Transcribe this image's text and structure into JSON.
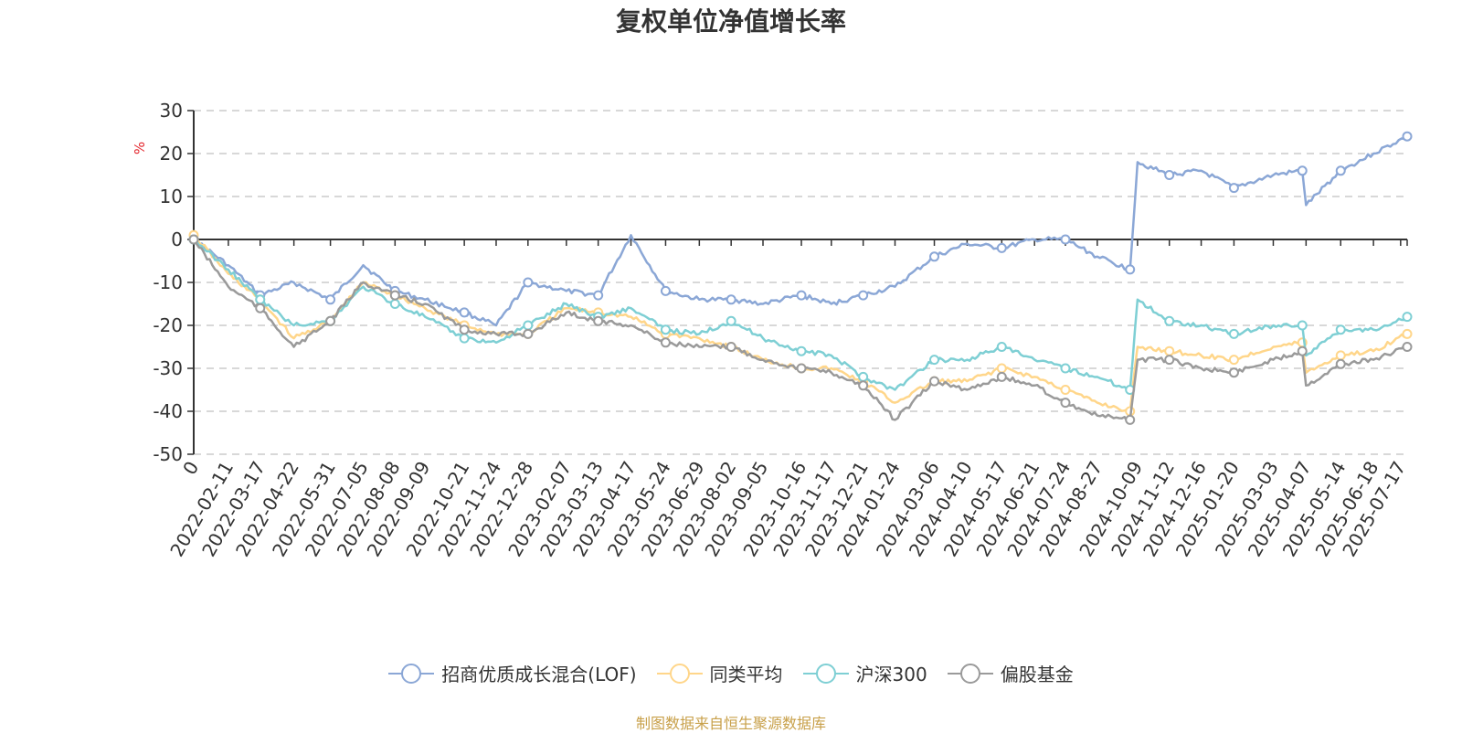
{
  "chart_data": {
    "type": "line",
    "title": "复权单位净值增长率",
    "ylabel": "%",
    "ylim": [
      -50,
      30
    ],
    "yticks": [
      30,
      20,
      10,
      0,
      -10,
      -20,
      -30,
      -40,
      -50
    ],
    "grid": true,
    "legend_position": "bottom",
    "x_start": "2022-01-05",
    "x_end": "2025-07-24",
    "x_first_tick_label": "0",
    "x_tick_labels": [
      "2022-02-11",
      "2022-03-17",
      "2022-04-22",
      "2022-05-31",
      "2022-07-05",
      "2022-08-08",
      "2022-09-09",
      "2022-10-21",
      "2022-11-24",
      "2022-12-28",
      "2023-02-07",
      "2023-03-13",
      "2023-04-17",
      "2023-05-24",
      "2023-06-29",
      "2023-08-02",
      "2023-09-05",
      "2023-10-16",
      "2023-11-17",
      "2023-12-21",
      "2024-01-24",
      "2024-03-06",
      "2024-04-10",
      "2024-05-17",
      "2024-06-21",
      "2024-07-24",
      "2024-08-27",
      "2024-10-09",
      "2024-11-12",
      "2024-12-16",
      "2025-01-20",
      "2025-03-03",
      "2025-04-07",
      "2025-05-14",
      "2025-06-18",
      "2025-07-17"
    ],
    "series": [
      {
        "name": "招商优质成长混合(LOF)",
        "color": "#8ba7d6",
        "points": [
          [
            "2022-01-05",
            0
          ],
          [
            "2022-02-11",
            -6
          ],
          [
            "2022-03-17",
            -13
          ],
          [
            "2022-04-22",
            -10
          ],
          [
            "2022-05-31",
            -14
          ],
          [
            "2022-07-05",
            -6
          ],
          [
            "2022-08-08",
            -12
          ],
          [
            "2022-09-09",
            -14
          ],
          [
            "2022-10-21",
            -17
          ],
          [
            "2022-11-24",
            -20
          ],
          [
            "2022-12-28",
            -10
          ],
          [
            "2023-02-07",
            -12
          ],
          [
            "2023-03-13",
            -13
          ],
          [
            "2023-04-17",
            1
          ],
          [
            "2023-05-24",
            -12
          ],
          [
            "2023-06-29",
            -14
          ],
          [
            "2023-08-02",
            -14
          ],
          [
            "2023-09-05",
            -15
          ],
          [
            "2023-10-16",
            -13
          ],
          [
            "2023-11-17",
            -15
          ],
          [
            "2023-12-21",
            -13
          ],
          [
            "2024-01-24",
            -11
          ],
          [
            "2024-03-06",
            -4
          ],
          [
            "2024-04-10",
            -1
          ],
          [
            "2024-05-17",
            -2
          ],
          [
            "2024-06-21",
            0
          ],
          [
            "2024-07-24",
            0
          ],
          [
            "2024-08-27",
            -4
          ],
          [
            "2024-10-01",
            -7
          ],
          [
            "2024-10-09",
            18
          ],
          [
            "2024-11-12",
            15
          ],
          [
            "2024-12-16",
            16
          ],
          [
            "2025-01-20",
            12
          ],
          [
            "2025-03-03",
            15
          ],
          [
            "2025-04-03",
            16
          ],
          [
            "2025-04-07",
            8
          ],
          [
            "2025-05-14",
            16
          ],
          [
            "2025-06-18",
            20
          ],
          [
            "2025-07-24",
            24
          ]
        ]
      },
      {
        "name": "同类平均",
        "color": "#ffd68a",
        "points": [
          [
            "2022-01-05",
            1
          ],
          [
            "2022-02-11",
            -8
          ],
          [
            "2022-03-17",
            -14
          ],
          [
            "2022-04-22",
            -23
          ],
          [
            "2022-05-31",
            -19
          ],
          [
            "2022-07-05",
            -10
          ],
          [
            "2022-08-08",
            -13
          ],
          [
            "2022-09-09",
            -16
          ],
          [
            "2022-10-21",
            -20
          ],
          [
            "2022-11-24",
            -22
          ],
          [
            "2022-12-28",
            -22
          ],
          [
            "2023-02-07",
            -16
          ],
          [
            "2023-03-13",
            -17
          ],
          [
            "2023-04-17",
            -18
          ],
          [
            "2023-05-24",
            -22
          ],
          [
            "2023-06-29",
            -23
          ],
          [
            "2023-08-02",
            -25
          ],
          [
            "2023-09-05",
            -28
          ],
          [
            "2023-10-16",
            -30
          ],
          [
            "2023-11-17",
            -30
          ],
          [
            "2023-12-21",
            -33
          ],
          [
            "2024-01-24",
            -38
          ],
          [
            "2024-03-06",
            -33
          ],
          [
            "2024-04-10",
            -33
          ],
          [
            "2024-05-17",
            -30
          ],
          [
            "2024-06-21",
            -32
          ],
          [
            "2024-07-24",
            -35
          ],
          [
            "2024-08-27",
            -38
          ],
          [
            "2024-10-01",
            -40
          ],
          [
            "2024-10-09",
            -25
          ],
          [
            "2024-11-12",
            -26
          ],
          [
            "2024-12-16",
            -27
          ],
          [
            "2025-01-20",
            -28
          ],
          [
            "2025-03-03",
            -25
          ],
          [
            "2025-04-03",
            -24
          ],
          [
            "2025-04-07",
            -31
          ],
          [
            "2025-05-14",
            -27
          ],
          [
            "2025-06-18",
            -26
          ],
          [
            "2025-07-24",
            -22
          ]
        ]
      },
      {
        "name": "沪深300",
        "color": "#7ecfd4",
        "points": [
          [
            "2022-01-05",
            0
          ],
          [
            "2022-02-11",
            -7
          ],
          [
            "2022-03-17",
            -14
          ],
          [
            "2022-04-22",
            -20
          ],
          [
            "2022-05-31",
            -19
          ],
          [
            "2022-07-05",
            -11
          ],
          [
            "2022-08-08",
            -15
          ],
          [
            "2022-09-09",
            -18
          ],
          [
            "2022-10-21",
            -23
          ],
          [
            "2022-11-24",
            -24
          ],
          [
            "2022-12-28",
            -20
          ],
          [
            "2023-02-07",
            -15
          ],
          [
            "2023-03-13",
            -18
          ],
          [
            "2023-04-17",
            -16
          ],
          [
            "2023-05-24",
            -21
          ],
          [
            "2023-06-29",
            -22
          ],
          [
            "2023-08-02",
            -19
          ],
          [
            "2023-09-05",
            -23
          ],
          [
            "2023-10-16",
            -26
          ],
          [
            "2023-11-17",
            -27
          ],
          [
            "2023-12-21",
            -32
          ],
          [
            "2024-01-24",
            -35
          ],
          [
            "2024-03-06",
            -28
          ],
          [
            "2024-04-10",
            -28
          ],
          [
            "2024-05-17",
            -25
          ],
          [
            "2024-06-21",
            -28
          ],
          [
            "2024-07-24",
            -30
          ],
          [
            "2024-08-27",
            -32
          ],
          [
            "2024-10-01",
            -35
          ],
          [
            "2024-10-09",
            -14
          ],
          [
            "2024-11-12",
            -19
          ],
          [
            "2024-12-16",
            -20
          ],
          [
            "2025-01-20",
            -22
          ],
          [
            "2025-03-03",
            -20
          ],
          [
            "2025-04-03",
            -20
          ],
          [
            "2025-04-07",
            -27
          ],
          [
            "2025-05-14",
            -21
          ],
          [
            "2025-06-18",
            -21
          ],
          [
            "2025-07-24",
            -18
          ]
        ]
      },
      {
        "name": "偏股基金",
        "color": "#9a9a9a",
        "points": [
          [
            "2022-01-05",
            0
          ],
          [
            "2022-02-11",
            -11
          ],
          [
            "2022-03-17",
            -16
          ],
          [
            "2022-04-22",
            -25
          ],
          [
            "2022-05-31",
            -19
          ],
          [
            "2022-07-05",
            -10
          ],
          [
            "2022-08-08",
            -13
          ],
          [
            "2022-09-09",
            -15
          ],
          [
            "2022-10-21",
            -21
          ],
          [
            "2022-11-24",
            -22
          ],
          [
            "2022-12-28",
            -22
          ],
          [
            "2023-02-07",
            -17
          ],
          [
            "2023-03-13",
            -19
          ],
          [
            "2023-04-17",
            -20
          ],
          [
            "2023-05-24",
            -24
          ],
          [
            "2023-06-29",
            -25
          ],
          [
            "2023-08-02",
            -25
          ],
          [
            "2023-09-05",
            -28
          ],
          [
            "2023-10-16",
            -30
          ],
          [
            "2023-11-17",
            -31
          ],
          [
            "2023-12-21",
            -34
          ],
          [
            "2024-01-24",
            -42
          ],
          [
            "2024-03-06",
            -33
          ],
          [
            "2024-04-10",
            -35
          ],
          [
            "2024-05-17",
            -32
          ],
          [
            "2024-06-21",
            -34
          ],
          [
            "2024-07-24",
            -38
          ],
          [
            "2024-08-27",
            -41
          ],
          [
            "2024-10-01",
            -42
          ],
          [
            "2024-10-09",
            -28
          ],
          [
            "2024-11-12",
            -28
          ],
          [
            "2024-12-16",
            -30
          ],
          [
            "2025-01-20",
            -31
          ],
          [
            "2025-03-03",
            -28
          ],
          [
            "2025-04-03",
            -26
          ],
          [
            "2025-04-07",
            -34
          ],
          [
            "2025-05-14",
            -29
          ],
          [
            "2025-06-18",
            -28
          ],
          [
            "2025-07-24",
            -25
          ]
        ]
      }
    ]
  },
  "source_note": "制图数据来自恒生聚源数据库"
}
